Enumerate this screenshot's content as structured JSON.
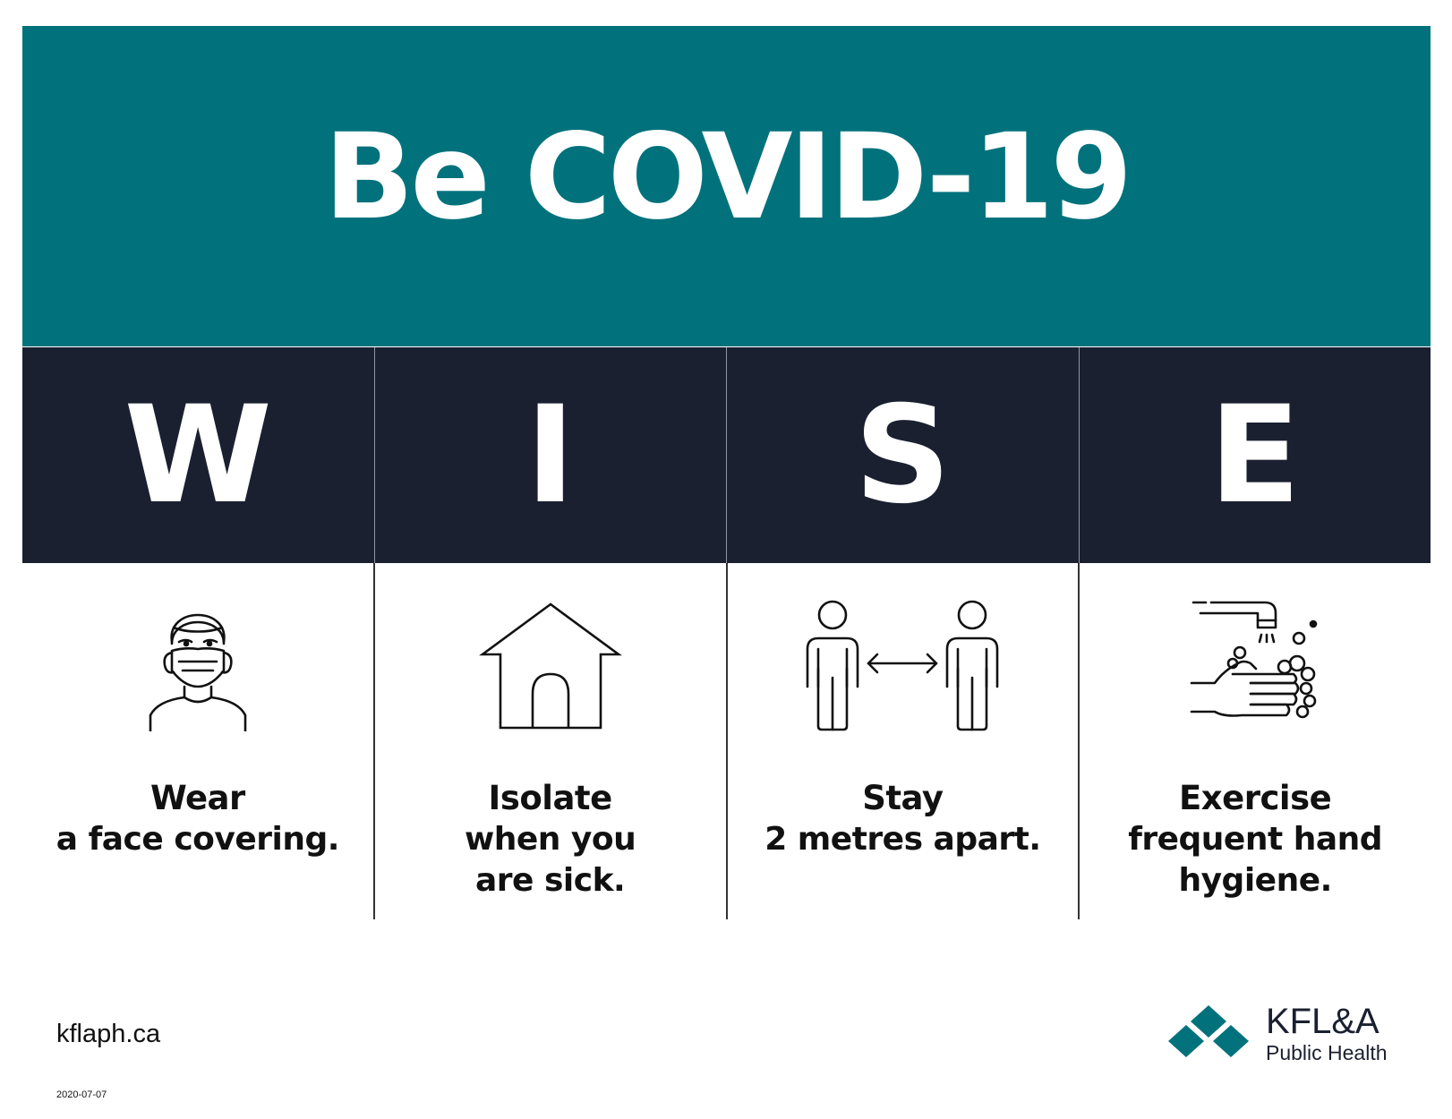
{
  "colors": {
    "teal": "#01727c",
    "navy": "#1a2030"
  },
  "banner": {
    "title": "Be COVID-19"
  },
  "letters": [
    "W",
    "I",
    "S",
    "E"
  ],
  "tips": [
    {
      "strong": "Wear",
      "rest": "a face covering.",
      "icon": "face-mask-icon"
    },
    {
      "strong": "Isolate",
      "rest": "when you are sick.",
      "icon": "house-icon"
    },
    {
      "strong": "Stay",
      "rest": "2 metres apart.",
      "icon": "distance-icon"
    },
    {
      "strong": "Exercise",
      "rest": "frequent hand hygiene.",
      "icon": "handwashing-icon"
    }
  ],
  "footer": {
    "site": "kflaph.ca",
    "date": "2020-07-07"
  },
  "logo": {
    "main": "KFL&A",
    "sub": "Public Health"
  }
}
